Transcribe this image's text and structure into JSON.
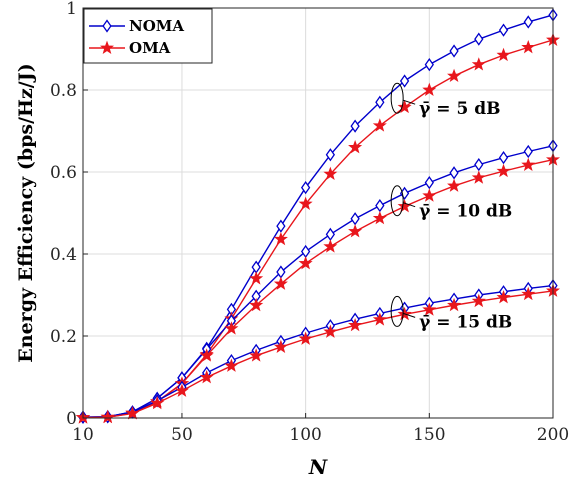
{
  "chart_data": {
    "type": "line",
    "xlabel": "N",
    "ylabel": "Energy Efficiency (bps/Hz/J)",
    "xlim": [
      10,
      200
    ],
    "ylim": [
      0,
      1
    ],
    "xticks": [
      10,
      50,
      100,
      150,
      200
    ],
    "yticks": [
      0,
      0.2,
      0.4,
      0.6,
      0.8,
      1
    ],
    "ytick_labels": [
      "0",
      "0.2",
      "0.4",
      "0.6",
      "0.8",
      "1"
    ],
    "grid": true,
    "legend": "top-left",
    "x": [
      10,
      20,
      30,
      40,
      50,
      60,
      70,
      80,
      90,
      100,
      110,
      120,
      130,
      140,
      150,
      160,
      170,
      180,
      190,
      200
    ],
    "series": [
      {
        "name": "NOMA",
        "group": "5",
        "color": "#0000cc",
        "marker": "diamond",
        "values": [
          0.002,
          0.003,
          0.015,
          0.048,
          0.098,
          0.17,
          0.265,
          0.368,
          0.468,
          0.562,
          0.642,
          0.712,
          0.77,
          0.822,
          0.862,
          0.895,
          0.924,
          0.946,
          0.966,
          0.983
        ]
      },
      {
        "name": "OMA",
        "group": "5",
        "color": "#e8161c",
        "marker": "star",
        "values": [
          0.001,
          0.002,
          0.012,
          0.04,
          0.084,
          0.155,
          0.242,
          0.34,
          0.436,
          0.522,
          0.595,
          0.66,
          0.713,
          0.758,
          0.8,
          0.834,
          0.862,
          0.885,
          0.904,
          0.922
        ]
      },
      {
        "name": "NOMA",
        "group": "10",
        "color": "#0000cc",
        "marker": "diamond",
        "values": [
          0.002,
          0.003,
          0.015,
          0.048,
          0.098,
          0.168,
          0.237,
          0.297,
          0.356,
          0.406,
          0.448,
          0.486,
          0.518,
          0.548,
          0.574,
          0.598,
          0.618,
          0.635,
          0.65,
          0.664
        ]
      },
      {
        "name": "OMA",
        "group": "10",
        "color": "#e8161c",
        "marker": "star",
        "values": [
          0.001,
          0.002,
          0.012,
          0.04,
          0.084,
          0.152,
          0.218,
          0.275,
          0.327,
          0.377,
          0.418,
          0.455,
          0.487,
          0.516,
          0.542,
          0.566,
          0.586,
          0.602,
          0.617,
          0.63
        ]
      },
      {
        "name": "NOMA",
        "group": "15",
        "color": "#0000cc",
        "marker": "diamond",
        "values": [
          0.002,
          0.003,
          0.014,
          0.042,
          0.075,
          0.11,
          0.14,
          0.165,
          0.187,
          0.207,
          0.225,
          0.241,
          0.255,
          0.268,
          0.28,
          0.29,
          0.3,
          0.308,
          0.316,
          0.323
        ]
      },
      {
        "name": "OMA",
        "group": "15",
        "color": "#e8161c",
        "marker": "star",
        "values": [
          0.001,
          0.002,
          0.011,
          0.036,
          0.066,
          0.099,
          0.127,
          0.152,
          0.173,
          0.193,
          0.21,
          0.226,
          0.24,
          0.253,
          0.264,
          0.275,
          0.285,
          0.294,
          0.302,
          0.31
        ]
      }
    ],
    "legend_entries": [
      "NOMA",
      "OMA"
    ],
    "annotations": [
      {
        "text": "γ̄ = 5 dB",
        "x": 137,
        "y": 0.78
      },
      {
        "text": "γ̄ = 10 dB",
        "x": 137,
        "y": 0.53
      },
      {
        "text": "γ̄ = 15 dB",
        "x": 137,
        "y": 0.26
      }
    ]
  }
}
